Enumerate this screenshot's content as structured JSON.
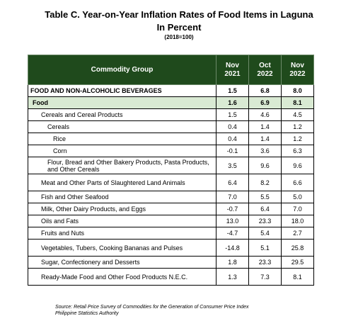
{
  "title": {
    "line1": "Table C. Year-on-Year Inflation Rates of Food Items in Laguna",
    "line2": "In Percent",
    "base": "(2018=100)"
  },
  "table": {
    "headers": [
      {
        "line1": "Commodity Group",
        "line2": ""
      },
      {
        "line1": "Nov",
        "line2": "2021"
      },
      {
        "line1": "Oct",
        "line2": "2022"
      },
      {
        "line1": "Nov",
        "line2": "2022"
      }
    ],
    "rows": [
      {
        "label": "FOOD AND NON-ALCOHOLIC BEVERAGES",
        "indent": 0,
        "bold": true,
        "highlight": false,
        "tall": false,
        "v1": "1.5",
        "v2": "6.8",
        "v3": "8.0"
      },
      {
        "label": "Food",
        "indent": 1,
        "bold": true,
        "highlight": true,
        "tall": false,
        "v1": "1.6",
        "v2": "6.9",
        "v3": "8.1"
      },
      {
        "label": "Cereals and Cereal Products",
        "indent": 2,
        "bold": false,
        "highlight": false,
        "tall": false,
        "v1": "1.5",
        "v2": "4.6",
        "v3": "4.5"
      },
      {
        "label": "Cereals",
        "indent": 3,
        "bold": false,
        "highlight": false,
        "tall": false,
        "v1": "0.4",
        "v2": "1.4",
        "v3": "1.2"
      },
      {
        "label": "Rice",
        "indent": 4,
        "bold": false,
        "highlight": false,
        "tall": false,
        "v1": "0.4",
        "v2": "1.4",
        "v3": "1.2"
      },
      {
        "label": "Corn",
        "indent": 4,
        "bold": false,
        "highlight": false,
        "tall": false,
        "v1": "-0.1",
        "v2": "3.6",
        "v3": "6.3"
      },
      {
        "label": "Flour, Bread and Other Bakery Products, Pasta Products, and Other Cereals",
        "indent": 3,
        "bold": false,
        "highlight": false,
        "tall": true,
        "v1": "3.5",
        "v2": "9.6",
        "v3": "9.6"
      },
      {
        "label": "Meat and Other Parts of Slaughtered Land Animals",
        "indent": 2,
        "bold": false,
        "highlight": false,
        "tall": true,
        "v1": "6.4",
        "v2": "8.2",
        "v3": "6.6"
      },
      {
        "label": "Fish and Other Seafood",
        "indent": 2,
        "bold": false,
        "highlight": false,
        "tall": false,
        "v1": "7.0",
        "v2": "5.5",
        "v3": "5.0"
      },
      {
        "label": "Milk, Other Dairy Products, and Eggs",
        "indent": 2,
        "bold": false,
        "highlight": false,
        "tall": false,
        "v1": "-0.7",
        "v2": "6.4",
        "v3": "7.0"
      },
      {
        "label": "Oils and Fats",
        "indent": 2,
        "bold": false,
        "highlight": false,
        "tall": false,
        "v1": "13.0",
        "v2": "23.3",
        "v3": "18.0"
      },
      {
        "label": "Fruits and Nuts",
        "indent": 2,
        "bold": false,
        "highlight": false,
        "tall": false,
        "v1": "-4.7",
        "v2": "5.4",
        "v3": "2.7"
      },
      {
        "label": "Vegetables, Tubers, Cooking Bananas and Pulses",
        "indent": 2,
        "bold": false,
        "highlight": false,
        "tall": true,
        "v1": "-14.8",
        "v2": "5.1",
        "v3": "25.8"
      },
      {
        "label": "Sugar, Confectionery and Desserts",
        "indent": 2,
        "bold": false,
        "highlight": false,
        "tall": false,
        "v1": "1.8",
        "v2": "23.3",
        "v3": "29.5"
      },
      {
        "label": "Ready-Made Food and Other Food Products N.E.C.",
        "indent": 2,
        "bold": false,
        "highlight": false,
        "tall": true,
        "v1": "1.3",
        "v2": "7.3",
        "v3": "8.1"
      }
    ]
  },
  "source": {
    "line1": "Source: Retail Price Survey of Commodities for the Generation of Consumer Price Index",
    "line2": "Philippine  Statistics Authority"
  }
}
